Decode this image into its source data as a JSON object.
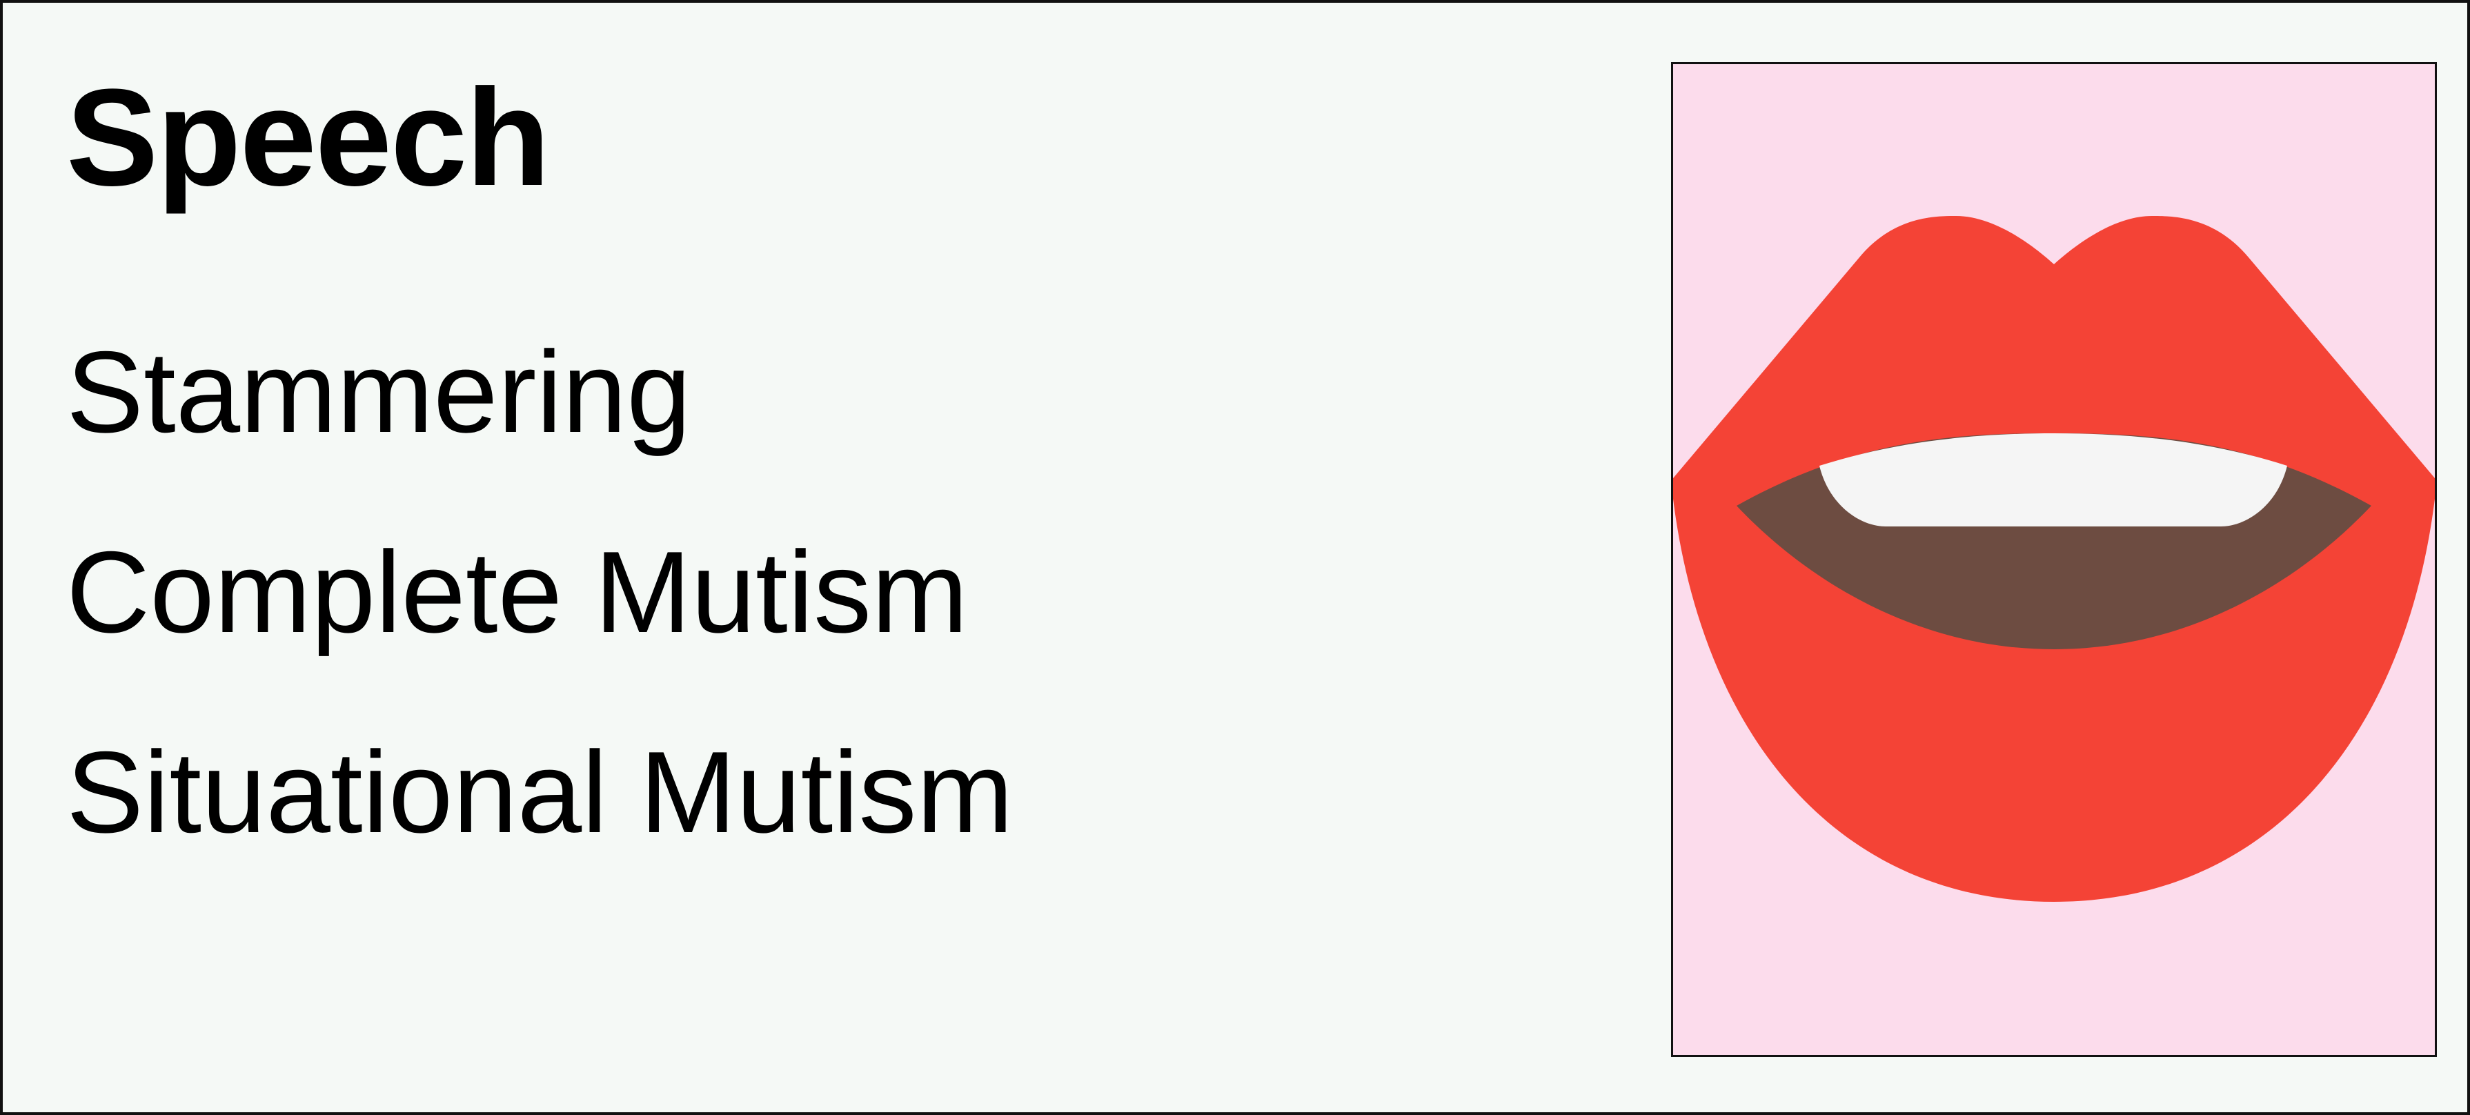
{
  "card": {
    "title": "Speech",
    "options": [
      {
        "label": "Stammering"
      },
      {
        "label": "Complete Mutism"
      },
      {
        "label": "Situational Mutism"
      }
    ]
  },
  "picture": {
    "icon": "mouth-icon",
    "colors": {
      "background": "#fcdcec",
      "lips": "#f44336",
      "inside": "#6d4c41",
      "teeth": "#f5f5f5"
    }
  }
}
